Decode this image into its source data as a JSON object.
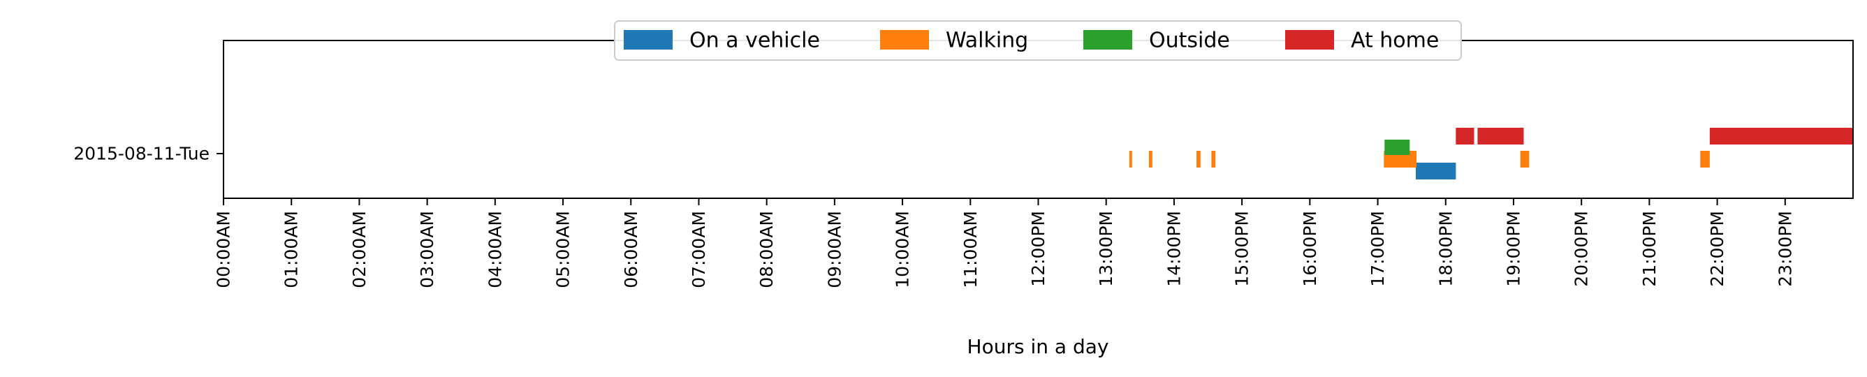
{
  "chart_data": {
    "type": "timeline",
    "xlabel": "Hours in a day",
    "xlim": [
      0,
      24
    ],
    "x_ticks": [
      {
        "value": 0,
        "label": "00:00AM"
      },
      {
        "value": 1,
        "label": "01:00AM"
      },
      {
        "value": 2,
        "label": "02:00AM"
      },
      {
        "value": 3,
        "label": "03:00AM"
      },
      {
        "value": 4,
        "label": "04:00AM"
      },
      {
        "value": 5,
        "label": "05:00AM"
      },
      {
        "value": 6,
        "label": "06:00AM"
      },
      {
        "value": 7,
        "label": "07:00AM"
      },
      {
        "value": 8,
        "label": "08:00AM"
      },
      {
        "value": 9,
        "label": "09:00AM"
      },
      {
        "value": 10,
        "label": "10:00AM"
      },
      {
        "value": 11,
        "label": "11:00AM"
      },
      {
        "value": 12,
        "label": "12:00PM"
      },
      {
        "value": 13,
        "label": "13:00PM"
      },
      {
        "value": 14,
        "label": "14:00PM"
      },
      {
        "value": 15,
        "label": "15:00PM"
      },
      {
        "value": 16,
        "label": "16:00PM"
      },
      {
        "value": 17,
        "label": "17:00PM"
      },
      {
        "value": 18,
        "label": "18:00PM"
      },
      {
        "value": 19,
        "label": "19:00PM"
      },
      {
        "value": 20,
        "label": "20:00PM"
      },
      {
        "value": 21,
        "label": "21:00PM"
      },
      {
        "value": 22,
        "label": "22:00PM"
      },
      {
        "value": 23,
        "label": "23:00PM"
      }
    ],
    "y_categories": [
      "2015-08-11-Tue"
    ],
    "legend_position": "top-center",
    "series": [
      {
        "name": "On a vehicle",
        "color": "#1f77b4",
        "intervals": [
          [
            17.56,
            18.15
          ]
        ]
      },
      {
        "name": "Walking",
        "color": "#ff7f0e",
        "intervals": [
          [
            13.34,
            13.37
          ],
          [
            13.63,
            13.68
          ],
          [
            14.33,
            14.39
          ],
          [
            14.55,
            14.61
          ],
          [
            17.09,
            17.57
          ],
          [
            19.1,
            19.23
          ],
          [
            21.75,
            21.89
          ]
        ]
      },
      {
        "name": "Outside",
        "color": "#2ca02c",
        "intervals": [
          [
            17.1,
            17.47
          ]
        ]
      },
      {
        "name": "At home",
        "color": "#d62728",
        "intervals": [
          [
            18.15,
            18.42
          ],
          [
            18.47,
            19.15
          ],
          [
            21.89,
            24.0
          ]
        ]
      }
    ]
  }
}
